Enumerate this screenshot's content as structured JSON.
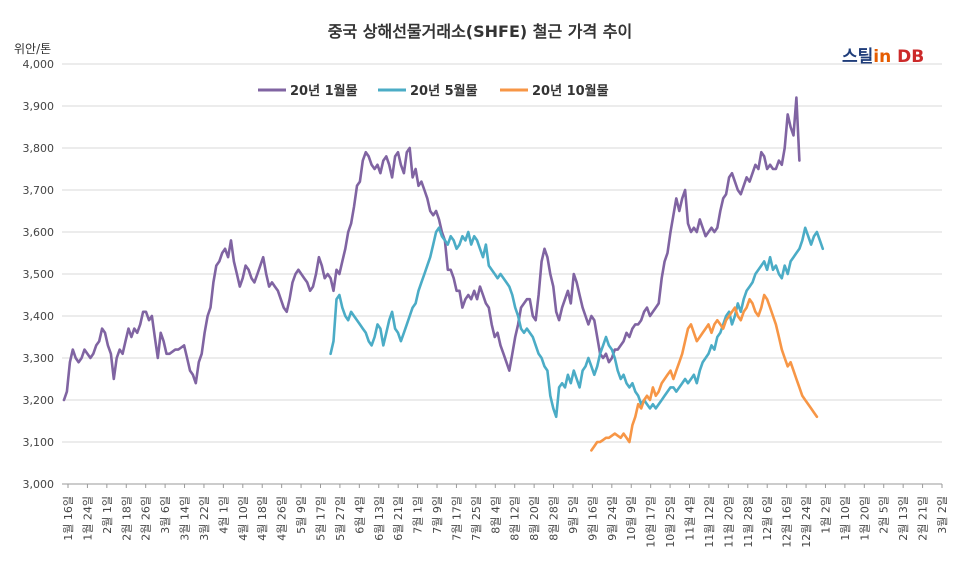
{
  "chart_data": {
    "type": "line",
    "title": "중국 상해선물거래소(SHFE) 철근 가격 추이",
    "ylabel": "위안/톤",
    "ylim": [
      3000,
      4000
    ],
    "y_ticks": [
      "3,000",
      "3,100",
      "3,200",
      "3,300",
      "3,400",
      "3,500",
      "3,600",
      "3,700",
      "3,800",
      "3,900",
      "4,000"
    ],
    "x_tick_labels": [
      "1월 16일",
      "1월 24일",
      "2월 1일",
      "2월 18일",
      "2월 26일",
      "3월 6일",
      "3월 14일",
      "3월 22일",
      "4월 1일",
      "4월 10일",
      "4월 18일",
      "4월 26일",
      "5월 9일",
      "5월 17일",
      "5월 27일",
      "6월 4일",
      "6월 13일",
      "6월 21일",
      "7월 1일",
      "7월 9일",
      "7월 17일",
      "7월 25일",
      "8월 4일",
      "8월 12일",
      "8월 20일",
      "8월 28일",
      "9월 5일",
      "9월 16일",
      "9월 24일",
      "10월 9일",
      "10월 17일",
      "10월 25일",
      "11월 4일",
      "11월 12일",
      "11월 20일",
      "11월 28일",
      "12월 6일",
      "12월 16일",
      "12월 24일",
      "1월 2일",
      "1월 10일",
      "1월 20일",
      "2월 5일",
      "2월 13일",
      "2월 21일",
      "3월 2일"
    ],
    "grid": true,
    "legend_position": "top",
    "series": [
      {
        "name": "20년 1월물",
        "color": "#8064a2",
        "start": 0,
        "values": [
          3200,
          3220,
          3290,
          3320,
          3300,
          3290,
          3300,
          3320,
          3310,
          3300,
          3310,
          3330,
          3340,
          3370,
          3360,
          3330,
          3310,
          3250,
          3300,
          3320,
          3310,
          3340,
          3370,
          3350,
          3370,
          3360,
          3380,
          3410,
          3410,
          3390,
          3400,
          3350,
          3300,
          3360,
          3340,
          3310,
          3310,
          3315,
          3320,
          3320,
          3325,
          3330,
          3300,
          3270,
          3260,
          3240,
          3290,
          3310,
          3360,
          3400,
          3420,
          3480,
          3520,
          3530,
          3550,
          3560,
          3540,
          3580,
          3530,
          3500,
          3470,
          3490,
          3520,
          3510,
          3490,
          3480,
          3500,
          3520,
          3540,
          3500,
          3470,
          3480,
          3470,
          3460,
          3440,
          3420,
          3410,
          3440,
          3480,
          3500,
          3510,
          3500,
          3490,
          3480,
          3460,
          3470,
          3500,
          3540,
          3520,
          3490,
          3500,
          3490,
          3460,
          3510,
          3500,
          3530,
          3560,
          3600,
          3620,
          3660,
          3710,
          3720,
          3770,
          3790,
          3780,
          3760,
          3750,
          3760,
          3740,
          3770,
          3780,
          3760,
          3730,
          3780,
          3790,
          3760,
          3740,
          3790,
          3800,
          3730,
          3750,
          3710,
          3720,
          3700,
          3680,
          3650,
          3640,
          3650,
          3630,
          3600,
          3580,
          3510,
          3510,
          3490,
          3460,
          3460,
          3420,
          3440,
          3450,
          3440,
          3460,
          3440,
          3470,
          3450,
          3430,
          3420,
          3380,
          3350,
          3360,
          3330,
          3310,
          3290,
          3270,
          3310,
          3350,
          3380,
          3420,
          3430,
          3440,
          3440,
          3400,
          3390,
          3450,
          3530,
          3560,
          3540,
          3500,
          3470,
          3410,
          3390,
          3420,
          3440,
          3460,
          3430,
          3500,
          3480,
          3450,
          3420,
          3400,
          3380,
          3400,
          3390,
          3350,
          3310,
          3300,
          3310,
          3290,
          3300,
          3320,
          3320,
          3330,
          3340,
          3360,
          3350,
          3370,
          3380,
          3380,
          3390,
          3410,
          3420,
          3400,
          3410,
          3420,
          3430,
          3490,
          3530,
          3550,
          3600,
          3640,
          3680,
          3650,
          3680,
          3700,
          3620,
          3600,
          3610,
          3600,
          3630,
          3610,
          3590,
          3600,
          3610,
          3600,
          3610,
          3650,
          3680,
          3690,
          3730,
          3740,
          3720,
          3700,
          3690,
          3710,
          3730,
          3720,
          3740,
          3760,
          3750,
          3790,
          3780,
          3750,
          3760,
          3750,
          3750,
          3770,
          3760,
          3800,
          3880,
          3850,
          3830,
          3920,
          3770
        ]
      },
      {
        "name": "20년 5월물",
        "color": "#4bacc6",
        "start": 91,
        "values": [
          3310,
          3340,
          3440,
          3450,
          3420,
          3400,
          3390,
          3410,
          3400,
          3390,
          3380,
          3370,
          3360,
          3340,
          3330,
          3350,
          3380,
          3370,
          3330,
          3360,
          3390,
          3410,
          3370,
          3360,
          3340,
          3360,
          3380,
          3400,
          3420,
          3430,
          3460,
          3480,
          3500,
          3520,
          3540,
          3570,
          3600,
          3610,
          3590,
          3580,
          3570,
          3590,
          3580,
          3560,
          3570,
          3590,
          3580,
          3600,
          3570,
          3590,
          3580,
          3560,
          3540,
          3570,
          3520,
          3510,
          3500,
          3490,
          3500,
          3490,
          3480,
          3470,
          3450,
          3420,
          3400,
          3370,
          3360,
          3370,
          3360,
          3350,
          3330,
          3310,
          3300,
          3280,
          3270,
          3210,
          3180,
          3160,
          3230,
          3240,
          3230,
          3260,
          3240,
          3270,
          3250,
          3230,
          3270,
          3280,
          3300,
          3280,
          3260,
          3280,
          3310,
          3330,
          3350,
          3330,
          3320,
          3300,
          3270,
          3250,
          3260,
          3240,
          3230,
          3240,
          3220,
          3210,
          3190,
          3200,
          3190,
          3180,
          3190,
          3180,
          3190,
          3200,
          3210,
          3220,
          3230,
          3230,
          3220,
          3230,
          3240,
          3250,
          3240,
          3250,
          3260,
          3240,
          3270,
          3290,
          3300,
          3310,
          3330,
          3320,
          3350,
          3360,
          3380,
          3400,
          3410,
          3380,
          3400,
          3430,
          3410,
          3440,
          3460,
          3470,
          3480,
          3500,
          3510,
          3520,
          3530,
          3510,
          3540,
          3510,
          3520,
          3500,
          3490,
          3520,
          3500,
          3530,
          3540,
          3550,
          3560,
          3580,
          3610,
          3590,
          3570,
          3590,
          3600,
          3580,
          3560
        ]
      },
      {
        "name": "20년 10월물",
        "color": "#f79646",
        "start": 180,
        "values": [
          3080,
          3090,
          3100,
          3100,
          3105,
          3110,
          3110,
          3115,
          3120,
          3115,
          3110,
          3120,
          3110,
          3100,
          3140,
          3160,
          3190,
          3180,
          3200,
          3210,
          3200,
          3230,
          3210,
          3220,
          3240,
          3250,
          3260,
          3270,
          3250,
          3270,
          3290,
          3310,
          3340,
          3370,
          3380,
          3360,
          3340,
          3350,
          3360,
          3370,
          3380,
          3360,
          3380,
          3390,
          3380,
          3370,
          3390,
          3400,
          3410,
          3420,
          3400,
          3390,
          3410,
          3420,
          3440,
          3430,
          3410,
          3400,
          3420,
          3450,
          3440,
          3420,
          3400,
          3380,
          3350,
          3320,
          3300,
          3280,
          3290,
          3270,
          3250,
          3230,
          3210,
          3200,
          3190,
          3180,
          3170,
          3160
        ]
      }
    ]
  }
}
